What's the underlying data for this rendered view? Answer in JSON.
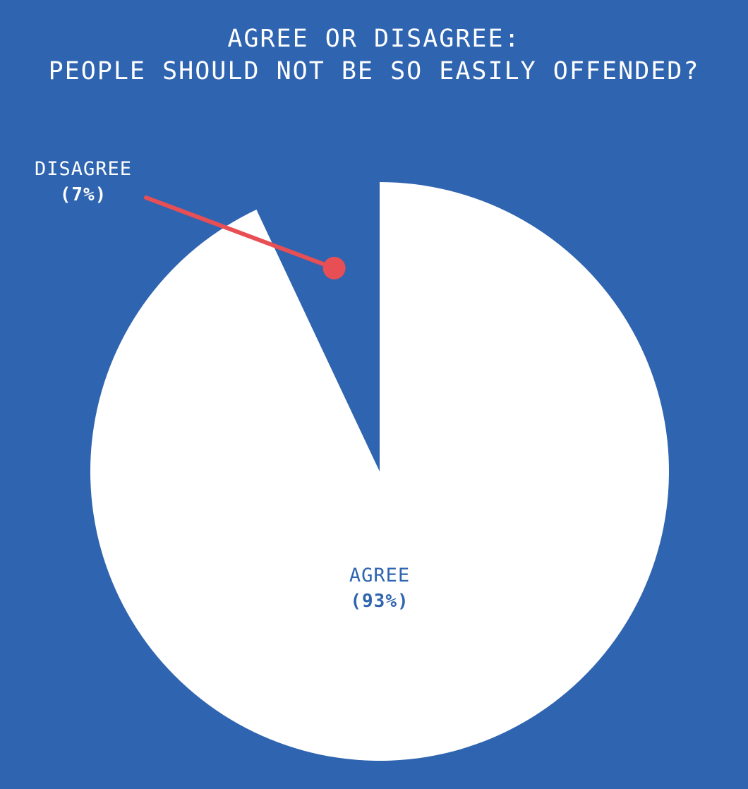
{
  "colors": {
    "background": "#2f64b0",
    "agree_slice": "#ffffff",
    "disagree_slice": "#2f64b0",
    "callout": "#e84f55"
  },
  "chart_data": {
    "type": "pie",
    "title": [
      "AGREE OR DISAGREE:",
      "PEOPLE SHOULD NOT BE SO EASILY OFFENDED?"
    ],
    "slices": [
      {
        "label": "DISAGREE",
        "value": 7,
        "value_label": "(7%)"
      },
      {
        "label": "AGREE",
        "value": 93,
        "value_label": "(93%)"
      }
    ],
    "start_angle": "12 o'clock, counter-clockwise for DISAGREE",
    "legend": "none; labels placed on/near slices"
  }
}
